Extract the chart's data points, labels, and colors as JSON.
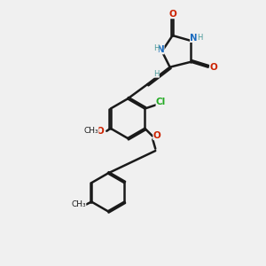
{
  "background_color": "#f0f0f0",
  "bond_color": "#1a1a1a",
  "atom_colors": {
    "N": "#1a6bbf",
    "O": "#cc2200",
    "Cl": "#22aa22",
    "C": "#1a1a1a",
    "H": "#4a9999"
  },
  "title": ""
}
